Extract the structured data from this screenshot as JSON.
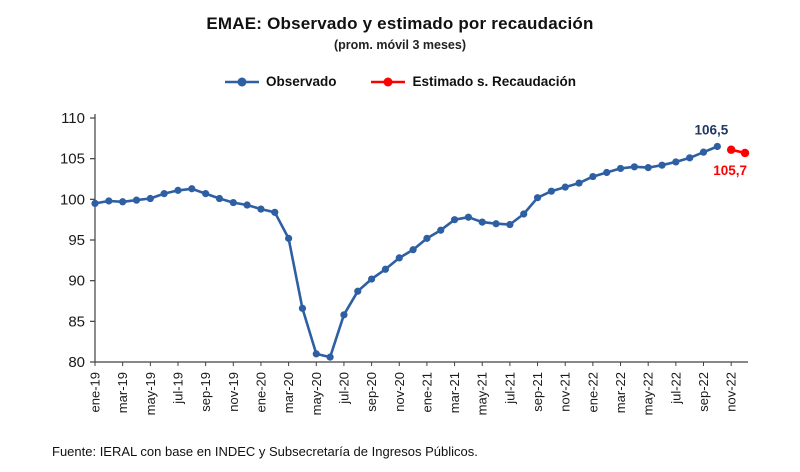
{
  "chart_data": {
    "type": "line",
    "title": "EMAE: Observado y estimado por recaudación",
    "subtitle": "(prom. móvil 3 meses)",
    "ylabel": "",
    "xlabel": "",
    "ylim": [
      80,
      110
    ],
    "yticks": [
      80,
      85,
      90,
      95,
      100,
      105,
      110
    ],
    "x_tick_labels": [
      "ene-19",
      "mar-19",
      "may-19",
      "jul-19",
      "sep-19",
      "nov-19",
      "ene-20",
      "mar-20",
      "may-20",
      "jul-20",
      "sep-20",
      "nov-20",
      "ene-21",
      "mar-21",
      "may-21",
      "jul-21",
      "sep-21",
      "nov-21",
      "ene-22",
      "mar-22",
      "may-22",
      "jul-22",
      "sep-22",
      "nov-22"
    ],
    "legend_position": "top",
    "grid": false,
    "series": [
      {
        "name": "Observado",
        "color": "#2E5FA3",
        "start_month": "ene-19",
        "values": [
          99.5,
          99.8,
          99.7,
          99.9,
          100.1,
          100.7,
          101.1,
          101.3,
          100.7,
          100.1,
          99.6,
          99.3,
          98.8,
          98.4,
          95.2,
          86.6,
          81.0,
          80.6,
          85.8,
          88.7,
          90.2,
          91.4,
          92.8,
          93.8,
          95.2,
          96.2,
          97.5,
          97.8,
          97.2,
          97.0,
          96.9,
          98.2,
          100.2,
          101.0,
          101.5,
          102.0,
          102.8,
          103.3,
          103.8,
          104.0,
          103.9,
          104.2,
          104.6,
          105.1,
          105.8,
          106.5
        ]
      },
      {
        "name": "Estimado s. Recaudación",
        "color": "#FF0000",
        "start_index": 46,
        "values": [
          106.1,
          105.7
        ]
      }
    ],
    "annotations": [
      {
        "text": "106,5",
        "color": "#1F3864",
        "series": 0,
        "point": 45,
        "dy": -12
      },
      {
        "text": "105,7",
        "color": "#FF0000",
        "series": 1,
        "point": 1,
        "dy": 22
      }
    ]
  },
  "footer": {
    "source": "Fuente: IERAL con base en INDEC y Subsecretaría de Ingresos Públicos."
  }
}
